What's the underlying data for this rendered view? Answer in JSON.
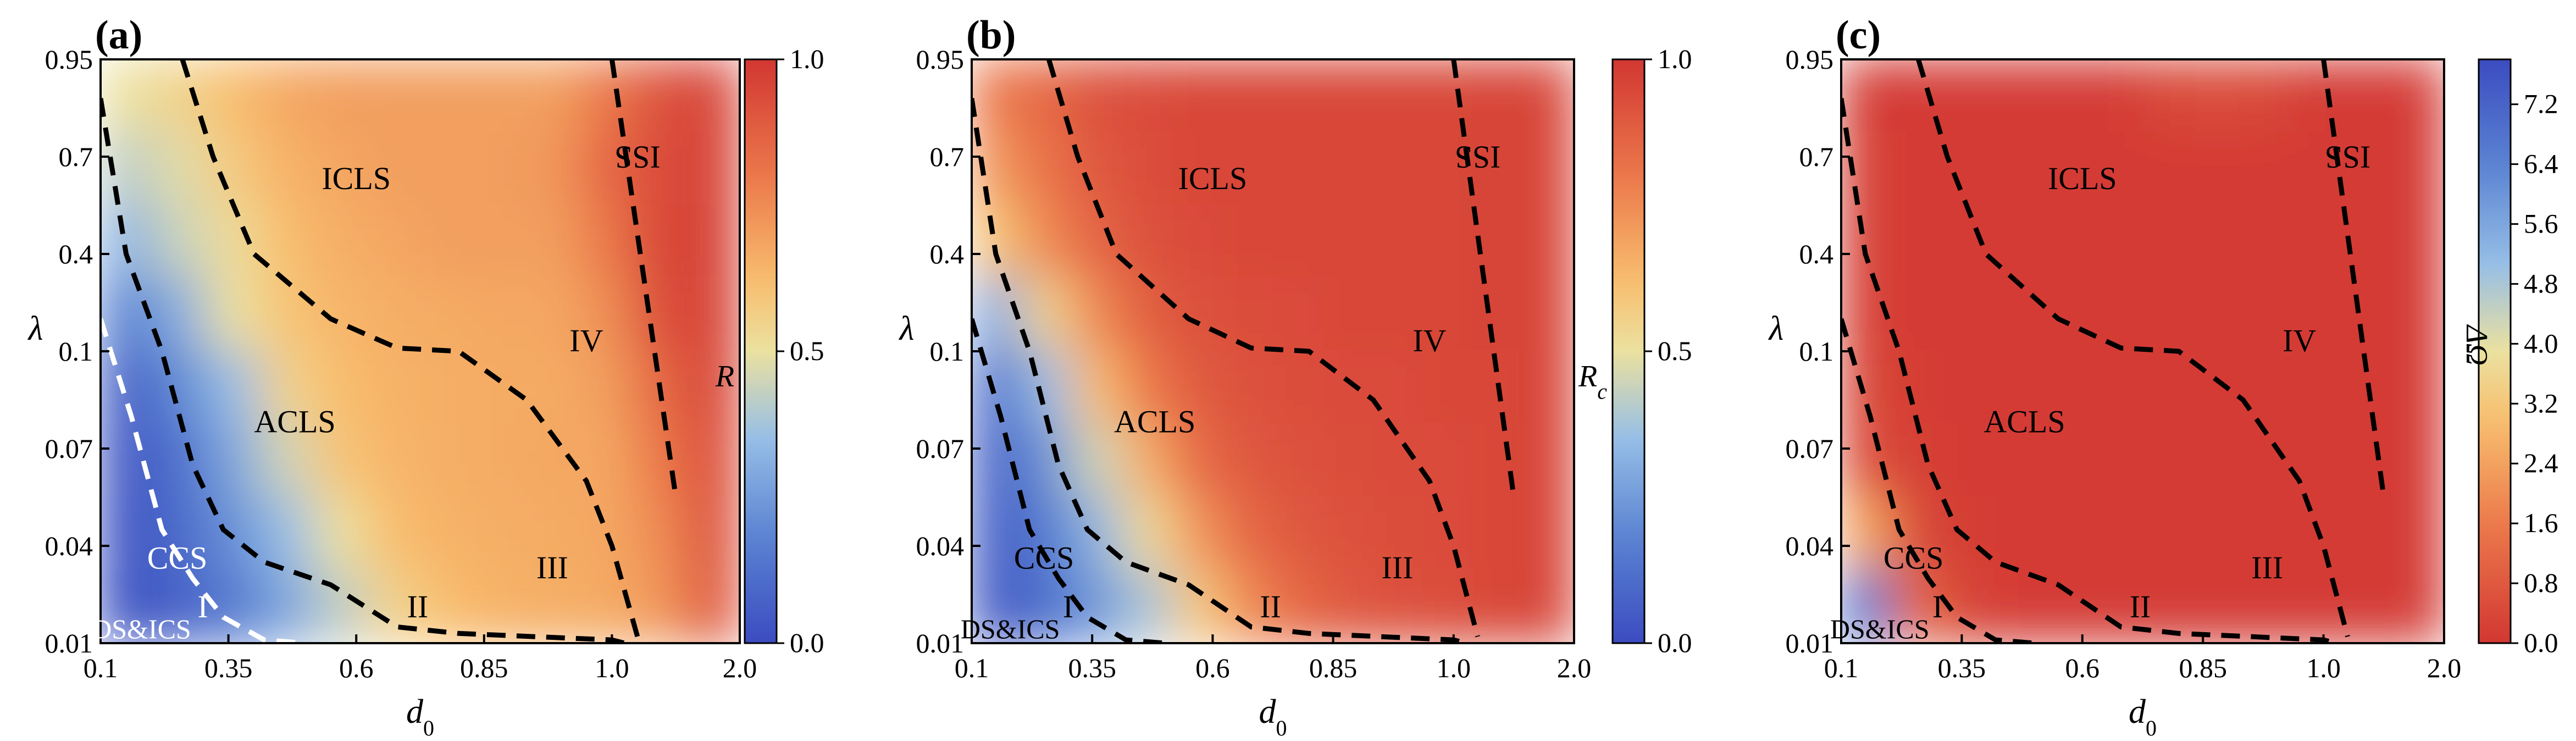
{
  "chart_data": [
    {
      "type": "heatmap",
      "panel_label": "(a)",
      "xlabel": "d",
      "xlabel_sub": "0",
      "ylabel": "λ",
      "x_ticks": [
        "0.1",
        "0.35",
        "0.6",
        "0.85",
        "1.0",
        "2.0"
      ],
      "y_ticks": [
        "0.95",
        "0.7",
        "0.4",
        "0.1",
        "0.07",
        "0.04",
        "0.01"
      ],
      "colorbar": {
        "label": "R",
        "label_sub": "",
        "ticks": [
          "1.0",
          "0.5",
          "0.0"
        ],
        "range": [
          0.0,
          1.0
        ],
        "colormap": "RdYlBu_r"
      },
      "field": [
        [
          0.5,
          0.55,
          0.62,
          0.68,
          0.7,
          0.7,
          0.7,
          0.7,
          0.7,
          0.8,
          0.92,
          0.96
        ],
        [
          0.42,
          0.48,
          0.58,
          0.65,
          0.68,
          0.7,
          0.7,
          0.7,
          0.72,
          0.85,
          0.94,
          0.96
        ],
        [
          0.32,
          0.44,
          0.52,
          0.62,
          0.66,
          0.68,
          0.7,
          0.7,
          0.7,
          0.8,
          0.95,
          0.96
        ],
        [
          0.18,
          0.3,
          0.5,
          0.6,
          0.64,
          0.66,
          0.67,
          0.68,
          0.68,
          0.74,
          0.93,
          0.96
        ],
        [
          0.06,
          0.2,
          0.35,
          0.55,
          0.62,
          0.65,
          0.66,
          0.67,
          0.67,
          0.7,
          0.85,
          0.95
        ],
        [
          0.04,
          0.12,
          0.28,
          0.45,
          0.6,
          0.64,
          0.66,
          0.67,
          0.68,
          0.68,
          0.8,
          0.93
        ],
        [
          0.03,
          0.1,
          0.22,
          0.35,
          0.5,
          0.62,
          0.65,
          0.66,
          0.67,
          0.68,
          0.75,
          0.92
        ],
        [
          0.02,
          0.08,
          0.15,
          0.28,
          0.42,
          0.55,
          0.62,
          0.65,
          0.66,
          0.67,
          0.72,
          0.9
        ]
      ],
      "regions": [
        {
          "label": "ICLS",
          "x": 0.6,
          "y": 0.6,
          "style": "black"
        },
        {
          "label": "ACLS",
          "x": 0.48,
          "y": 0.075,
          "style": "black"
        },
        {
          "label": "CCS",
          "x": 0.25,
          "y": 0.033,
          "style": "white"
        },
        {
          "label": "I",
          "x": 0.3,
          "y": 0.018,
          "style": "white"
        },
        {
          "label": "II",
          "x": 0.72,
          "y": 0.018,
          "style": "black"
        },
        {
          "label": "III",
          "x": 0.93,
          "y": 0.03,
          "style": "black"
        },
        {
          "label": "IV",
          "x": 0.97,
          "y": 0.1,
          "style": "black"
        },
        {
          "label": "ISS",
          "x": 1.2,
          "y": 0.67,
          "style": "black",
          "rotated": true
        },
        {
          "label": "DS&ICS",
          "x": 0.18,
          "y": 0.0115,
          "style": "small-white"
        }
      ],
      "dashed_lines": [
        {
          "color": "black",
          "points": [
            [
              0.1,
              0.85
            ],
            [
              0.15,
              0.4
            ],
            [
              0.22,
              0.1
            ],
            [
              0.28,
              0.065
            ],
            [
              0.34,
              0.045
            ],
            [
              0.42,
              0.035
            ],
            [
              0.55,
              0.028
            ],
            [
              0.68,
              0.015
            ],
            [
              0.8,
              0.013
            ],
            [
              1.0,
              0.011
            ],
            [
              1.1,
              0.01
            ]
          ]
        },
        {
          "color": "black",
          "points": [
            [
              0.26,
              0.95
            ],
            [
              0.32,
              0.7
            ],
            [
              0.4,
              0.4
            ],
            [
              0.55,
              0.2
            ],
            [
              0.68,
              0.11
            ],
            [
              0.8,
              0.1
            ],
            [
              0.9,
              0.085
            ],
            [
              0.97,
              0.06
            ],
            [
              1.0,
              0.04
            ],
            [
              1.2,
              0.012
            ]
          ]
        },
        {
          "color": "black",
          "points": [
            [
              1.0,
              0.95
            ],
            [
              1.5,
              0.055
            ]
          ]
        },
        {
          "color": "white",
          "points": [
            [
              0.1,
              0.2
            ],
            [
              0.16,
              0.08
            ],
            [
              0.22,
              0.045
            ],
            [
              0.28,
              0.03
            ],
            [
              0.34,
              0.018
            ],
            [
              0.42,
              0.011
            ],
            [
              0.5,
              0.01
            ]
          ]
        }
      ]
    },
    {
      "type": "heatmap",
      "panel_label": "(b)",
      "xlabel": "d",
      "xlabel_sub": "0",
      "ylabel": "λ",
      "x_ticks": [
        "0.1",
        "0.35",
        "0.6",
        "0.85",
        "1.0",
        "2.0"
      ],
      "y_ticks": [
        "0.95",
        "0.7",
        "0.4",
        "0.1",
        "0.07",
        "0.04",
        "0.01"
      ],
      "colorbar": {
        "label": "R",
        "label_sub": "c",
        "ticks": [
          "1.0",
          "0.5",
          "0.0"
        ],
        "range": [
          0.0,
          1.0
        ],
        "colormap": "RdYlBu_r"
      },
      "field": [
        [
          0.8,
          0.85,
          0.92,
          0.94,
          0.95,
          0.95,
          0.95,
          0.95,
          0.95,
          0.95,
          0.96,
          0.96
        ],
        [
          0.72,
          0.82,
          0.9,
          0.93,
          0.95,
          0.95,
          0.95,
          0.95,
          0.95,
          0.95,
          0.96,
          0.96
        ],
        [
          0.6,
          0.76,
          0.86,
          0.92,
          0.94,
          0.95,
          0.95,
          0.95,
          0.95,
          0.95,
          0.96,
          0.96
        ],
        [
          0.3,
          0.55,
          0.76,
          0.88,
          0.92,
          0.93,
          0.94,
          0.95,
          0.95,
          0.95,
          0.96,
          0.96
        ],
        [
          0.12,
          0.35,
          0.62,
          0.8,
          0.89,
          0.92,
          0.93,
          0.94,
          0.94,
          0.95,
          0.95,
          0.96
        ],
        [
          0.08,
          0.22,
          0.45,
          0.66,
          0.84,
          0.9,
          0.92,
          0.93,
          0.94,
          0.94,
          0.95,
          0.96
        ],
        [
          0.06,
          0.15,
          0.32,
          0.52,
          0.72,
          0.85,
          0.9,
          0.92,
          0.93,
          0.94,
          0.95,
          0.96
        ],
        [
          0.05,
          0.12,
          0.24,
          0.38,
          0.58,
          0.75,
          0.85,
          0.9,
          0.92,
          0.93,
          0.95,
          0.96
        ]
      ],
      "regions": [
        {
          "label": "ICLS",
          "x": 0.6,
          "y": 0.6,
          "style": "black"
        },
        {
          "label": "ACLS",
          "x": 0.48,
          "y": 0.075,
          "style": "black"
        },
        {
          "label": "CCS",
          "x": 0.25,
          "y": 0.033,
          "style": "black"
        },
        {
          "label": "I",
          "x": 0.3,
          "y": 0.018,
          "style": "black"
        },
        {
          "label": "II",
          "x": 0.72,
          "y": 0.018,
          "style": "black"
        },
        {
          "label": "III",
          "x": 0.93,
          "y": 0.03,
          "style": "black"
        },
        {
          "label": "IV",
          "x": 0.97,
          "y": 0.1,
          "style": "black"
        },
        {
          "label": "ISS",
          "x": 1.2,
          "y": 0.67,
          "style": "black",
          "rotated": true
        },
        {
          "label": "DS&ICS",
          "x": 0.18,
          "y": 0.0115,
          "style": "small-black"
        }
      ],
      "dashed_lines": [
        {
          "color": "black",
          "points": [
            [
              0.1,
              0.2
            ],
            [
              0.16,
              0.08
            ],
            [
              0.22,
              0.045
            ],
            [
              0.28,
              0.03
            ],
            [
              0.34,
              0.018
            ],
            [
              0.42,
              0.011
            ],
            [
              0.5,
              0.01
            ]
          ]
        },
        {
          "color": "black",
          "points": [
            [
              0.1,
              0.85
            ],
            [
              0.15,
              0.4
            ],
            [
              0.22,
              0.1
            ],
            [
              0.28,
              0.065
            ],
            [
              0.34,
              0.045
            ],
            [
              0.42,
              0.035
            ],
            [
              0.55,
              0.028
            ],
            [
              0.68,
              0.015
            ],
            [
              0.8,
              0.013
            ],
            [
              1.0,
              0.011
            ],
            [
              1.1,
              0.01
            ]
          ]
        },
        {
          "color": "black",
          "points": [
            [
              0.26,
              0.95
            ],
            [
              0.32,
              0.7
            ],
            [
              0.4,
              0.4
            ],
            [
              0.55,
              0.2
            ],
            [
              0.68,
              0.11
            ],
            [
              0.8,
              0.1
            ],
            [
              0.9,
              0.085
            ],
            [
              0.97,
              0.06
            ],
            [
              1.0,
              0.04
            ],
            [
              1.2,
              0.012
            ]
          ]
        },
        {
          "color": "black",
          "points": [
            [
              1.0,
              0.95
            ],
            [
              1.5,
              0.055
            ]
          ]
        }
      ]
    },
    {
      "type": "heatmap",
      "panel_label": "(c)",
      "xlabel": "d",
      "xlabel_sub": "0",
      "ylabel": "λ",
      "x_ticks": [
        "0.1",
        "0.35",
        "0.6",
        "0.85",
        "1.0",
        "2.0"
      ],
      "y_ticks": [
        "0.95",
        "0.7",
        "0.4",
        "0.1",
        "0.07",
        "0.04",
        "0.01"
      ],
      "colorbar": {
        "label": "ΔΩ",
        "label_sub": "",
        "ticks": [
          "7.2",
          "6.4",
          "5.6",
          "4.8",
          "4.0",
          "3.2",
          "2.4",
          "1.6",
          "0.8",
          "0.0"
        ],
        "range": [
          0.0,
          7.8
        ],
        "colormap": "RdYlBu"
      },
      "field": [
        [
          0.15,
          0.1,
          0.1,
          0.1,
          0.1,
          0.1,
          0.4,
          0.5,
          0.4,
          0.1,
          0.1,
          0.1
        ],
        [
          0.2,
          0.1,
          0.1,
          0.1,
          0.1,
          0.1,
          0.1,
          0.1,
          0.1,
          0.1,
          0.1,
          0.1
        ],
        [
          0.2,
          0.1,
          0.1,
          0.1,
          0.1,
          0.1,
          0.1,
          0.1,
          0.1,
          0.1,
          0.1,
          0.1
        ],
        [
          0.25,
          0.1,
          0.1,
          0.1,
          0.1,
          0.1,
          0.1,
          0.1,
          0.1,
          0.1,
          0.1,
          0.1
        ],
        [
          0.35,
          0.15,
          0.1,
          0.1,
          0.1,
          0.1,
          0.1,
          0.1,
          0.1,
          0.1,
          0.1,
          0.1
        ],
        [
          0.6,
          0.2,
          0.1,
          0.1,
          0.1,
          0.1,
          0.1,
          0.1,
          0.1,
          0.1,
          0.1,
          0.1
        ],
        [
          2.5,
          0.4,
          0.15,
          0.1,
          0.1,
          0.1,
          0.1,
          0.1,
          0.1,
          0.1,
          0.1,
          0.1
        ],
        [
          6.5,
          1.2,
          0.3,
          0.1,
          0.1,
          0.1,
          0.1,
          0.1,
          0.1,
          0.1,
          0.1,
          0.1
        ]
      ],
      "regions": [
        {
          "label": "ICLS",
          "x": 0.6,
          "y": 0.6,
          "style": "black"
        },
        {
          "label": "ACLS",
          "x": 0.48,
          "y": 0.075,
          "style": "black"
        },
        {
          "label": "CCS",
          "x": 0.25,
          "y": 0.033,
          "style": "black"
        },
        {
          "label": "I",
          "x": 0.3,
          "y": 0.018,
          "style": "black"
        },
        {
          "label": "II",
          "x": 0.72,
          "y": 0.018,
          "style": "black"
        },
        {
          "label": "III",
          "x": 0.93,
          "y": 0.03,
          "style": "black"
        },
        {
          "label": "IV",
          "x": 0.97,
          "y": 0.1,
          "style": "black"
        },
        {
          "label": "ISS",
          "x": 1.2,
          "y": 0.67,
          "style": "black",
          "rotated": true
        },
        {
          "label": "DS&ICS",
          "x": 0.18,
          "y": 0.0115,
          "style": "small-black"
        }
      ],
      "dashed_lines": [
        {
          "color": "black",
          "points": [
            [
              0.1,
              0.2
            ],
            [
              0.16,
              0.08
            ],
            [
              0.22,
              0.045
            ],
            [
              0.28,
              0.03
            ],
            [
              0.34,
              0.018
            ],
            [
              0.42,
              0.011
            ],
            [
              0.5,
              0.01
            ]
          ]
        },
        {
          "color": "black",
          "points": [
            [
              0.1,
              0.85
            ],
            [
              0.15,
              0.4
            ],
            [
              0.22,
              0.1
            ],
            [
              0.28,
              0.065
            ],
            [
              0.34,
              0.045
            ],
            [
              0.42,
              0.035
            ],
            [
              0.55,
              0.028
            ],
            [
              0.68,
              0.015
            ],
            [
              0.8,
              0.013
            ],
            [
              1.0,
              0.011
            ],
            [
              1.1,
              0.01
            ]
          ]
        },
        {
          "color": "black",
          "points": [
            [
              0.26,
              0.95
            ],
            [
              0.32,
              0.7
            ],
            [
              0.4,
              0.4
            ],
            [
              0.55,
              0.2
            ],
            [
              0.68,
              0.11
            ],
            [
              0.8,
              0.1
            ],
            [
              0.9,
              0.085
            ],
            [
              0.97,
              0.06
            ],
            [
              1.0,
              0.04
            ],
            [
              1.2,
              0.012
            ]
          ]
        },
        {
          "color": "black",
          "points": [
            [
              1.0,
              0.95
            ],
            [
              1.5,
              0.055
            ]
          ]
        }
      ]
    }
  ]
}
